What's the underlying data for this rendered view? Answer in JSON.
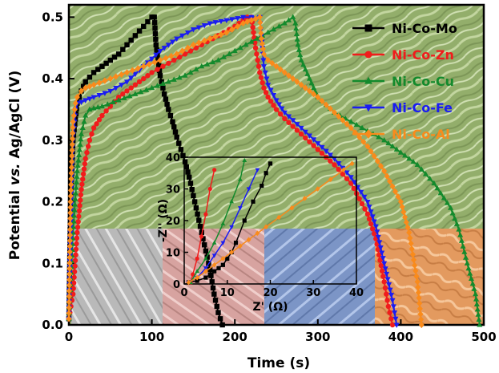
{
  "chart_data": {
    "type": "line",
    "xlabel": "Time (s)",
    "ylabel_parts": [
      "Potential ",
      "vs.",
      " Ag/AgCl (V)"
    ],
    "xlim": [
      0,
      500
    ],
    "ylim": [
      0,
      0.52
    ],
    "xticks": [
      "0",
      "100",
      "200",
      "300",
      "400",
      "500"
    ],
    "yticks": [
      "0.0",
      "0.1",
      "0.2",
      "0.3",
      "0.4",
      "0.5"
    ],
    "legend_position": "top-right",
    "background": "SEM micrograph photographs of nanostructures (green-tinted full background; grey, pink, blue, orange tinted strips at bottom)",
    "series": [
      {
        "name": "Ni-Co-Mo",
        "color": "#000000",
        "marker": "square",
        "x": [
          0,
          2,
          5,
          10,
          15,
          20,
          30,
          40,
          50,
          60,
          70,
          80,
          90,
          100,
          103,
          105,
          110,
          115,
          120,
          125,
          130,
          135,
          140,
          145,
          150,
          155,
          160,
          165,
          170,
          175,
          180,
          185
        ],
        "y": [
          0.01,
          0.2,
          0.3,
          0.36,
          0.38,
          0.395,
          0.41,
          0.42,
          0.43,
          0.44,
          0.455,
          0.47,
          0.485,
          0.5,
          0.5,
          0.455,
          0.405,
          0.375,
          0.35,
          0.33,
          0.305,
          0.285,
          0.265,
          0.24,
          0.21,
          0.18,
          0.15,
          0.12,
          0.09,
          0.05,
          0.02,
          0.0
        ]
      },
      {
        "name": "Ni-Co-Zn",
        "color": "#f01c1c",
        "marker": "circle",
        "x": [
          0,
          5,
          10,
          15,
          20,
          25,
          30,
          40,
          60,
          80,
          100,
          120,
          140,
          160,
          180,
          200,
          215,
          220,
          225,
          230,
          235,
          240,
          250,
          260,
          280,
          300,
          320,
          340,
          360,
          370,
          380,
          385,
          390
        ],
        "y": [
          0.01,
          0.05,
          0.15,
          0.22,
          0.27,
          0.3,
          0.32,
          0.34,
          0.37,
          0.39,
          0.41,
          0.425,
          0.44,
          0.455,
          0.47,
          0.485,
          0.5,
          0.5,
          0.45,
          0.41,
          0.385,
          0.37,
          0.35,
          0.335,
          0.31,
          0.285,
          0.26,
          0.23,
          0.18,
          0.14,
          0.07,
          0.03,
          0.0
        ]
      },
      {
        "name": "Ni-Co-Cu",
        "color": "#138a2c",
        "marker": "triangle-up",
        "x": [
          0,
          5,
          10,
          15,
          20,
          25,
          30,
          40,
          60,
          80,
          100,
          120,
          140,
          160,
          180,
          200,
          220,
          240,
          260,
          270,
          273,
          276,
          280,
          290,
          300,
          320,
          340,
          360,
          380,
          400,
          420,
          440,
          460,
          470,
          480,
          490,
          495
        ],
        "y": [
          0.01,
          0.15,
          0.25,
          0.31,
          0.34,
          0.35,
          0.352,
          0.355,
          0.365,
          0.375,
          0.385,
          0.395,
          0.405,
          0.42,
          0.43,
          0.445,
          0.46,
          0.475,
          0.49,
          0.5,
          0.49,
          0.455,
          0.43,
          0.4,
          0.37,
          0.345,
          0.33,
          0.315,
          0.3,
          0.28,
          0.26,
          0.23,
          0.19,
          0.155,
          0.1,
          0.05,
          0.0
        ]
      },
      {
        "name": "Ni-Co-Fe",
        "color": "#1a1cf2",
        "marker": "triangle-down",
        "x": [
          0,
          2,
          5,
          8,
          10,
          15,
          20,
          30,
          50,
          70,
          90,
          110,
          130,
          150,
          170,
          190,
          210,
          220,
          230,
          232,
          235,
          240,
          250,
          260,
          280,
          300,
          320,
          340,
          360,
          370,
          380,
          390,
          395
        ],
        "y": [
          0.01,
          0.15,
          0.3,
          0.35,
          0.36,
          0.362,
          0.365,
          0.37,
          0.38,
          0.395,
          0.42,
          0.445,
          0.465,
          0.48,
          0.49,
          0.495,
          0.5,
          0.5,
          0.5,
          0.47,
          0.42,
          0.39,
          0.365,
          0.345,
          0.32,
          0.295,
          0.27,
          0.24,
          0.2,
          0.16,
          0.1,
          0.04,
          0.0
        ]
      },
      {
        "name": "Ni-Co-Al",
        "color": "#f98b1c",
        "marker": "diamond",
        "x": [
          0,
          2,
          5,
          8,
          10,
          15,
          20,
          30,
          50,
          70,
          90,
          110,
          130,
          150,
          170,
          190,
          210,
          220,
          230,
          232,
          235,
          240,
          250,
          260,
          280,
          300,
          320,
          340,
          360,
          380,
          400,
          410,
          420,
          425
        ],
        "y": [
          0.01,
          0.2,
          0.33,
          0.36,
          0.37,
          0.38,
          0.385,
          0.39,
          0.4,
          0.41,
          0.42,
          0.43,
          0.44,
          0.455,
          0.465,
          0.475,
          0.49,
          0.495,
          0.5,
          0.465,
          0.44,
          0.43,
          0.42,
          0.41,
          0.39,
          0.37,
          0.345,
          0.32,
          0.29,
          0.25,
          0.2,
          0.15,
          0.07,
          0.0
        ]
      }
    ],
    "inset": {
      "type": "line",
      "xlabel": "Z' (Ω)",
      "ylabel": "-Z'' (Ω)",
      "xlim": [
        0,
        40
      ],
      "ylim": [
        0,
        40
      ],
      "xticks": [
        "0",
        "10",
        "20",
        "30",
        "40"
      ],
      "yticks": [
        "0",
        "10",
        "20",
        "30",
        "40"
      ],
      "series": [
        {
          "name": "Ni-Co-Mo",
          "x": [
            1,
            3,
            5,
            6,
            7,
            8,
            9,
            10,
            11,
            12,
            14,
            16,
            18,
            19,
            20
          ],
          "y": [
            0.5,
            1,
            2,
            3,
            4,
            5,
            6,
            8,
            10,
            13,
            20,
            26,
            31,
            35,
            38
          ]
        },
        {
          "name": "Ni-Co-Zn",
          "x": [
            1.5,
            2,
            3,
            4,
            5,
            6,
            7
          ],
          "y": [
            0.5,
            3,
            8,
            15,
            22,
            30,
            36
          ]
        },
        {
          "name": "Ni-Co-Cu",
          "x": [
            1.5,
            3,
            5,
            7,
            9,
            11,
            13,
            14
          ],
          "y": [
            0.5,
            4,
            8,
            13,
            19,
            26,
            33,
            39
          ]
        },
        {
          "name": "Ni-Co-Fe",
          "x": [
            1,
            3,
            5,
            7,
            9,
            11,
            13,
            15,
            17
          ],
          "y": [
            0.5,
            2,
            5,
            9,
            13,
            18,
            24,
            30,
            36
          ]
        },
        {
          "name": "Ni-Co-Al",
          "x": [
            1,
            3,
            5,
            7,
            9,
            11,
            13,
            15,
            17,
            19,
            22,
            25,
            28,
            31,
            34,
            37,
            39
          ],
          "y": [
            0.5,
            2,
            4,
            6,
            8,
            10,
            12,
            14,
            16,
            18,
            21,
            24,
            27,
            30,
            33,
            36,
            38
          ]
        }
      ]
    }
  }
}
